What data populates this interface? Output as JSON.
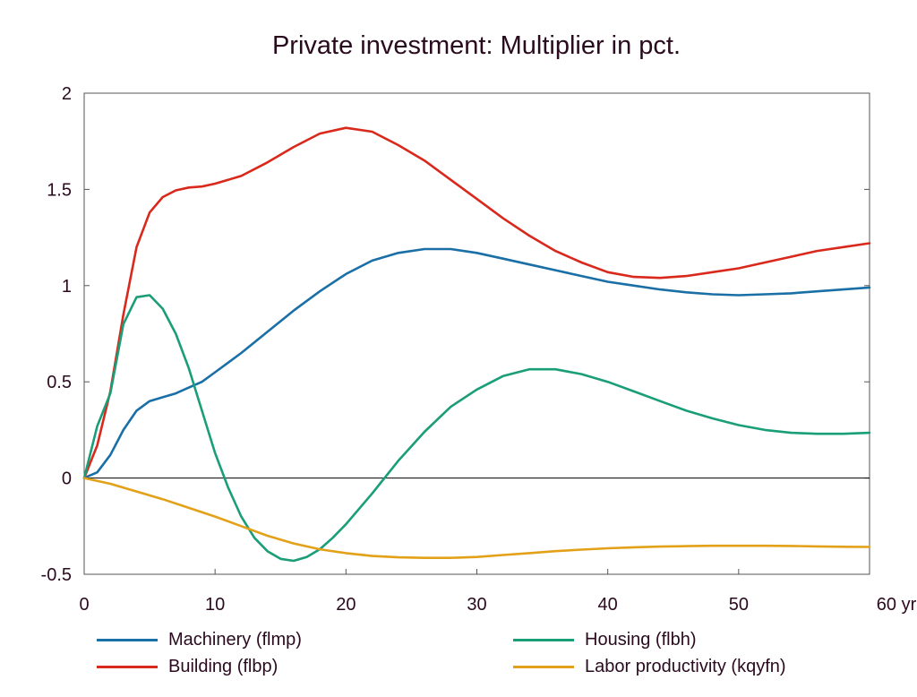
{
  "chart_data": {
    "type": "line",
    "title": "Private investment: Multiplier in pct.",
    "xlabel": "",
    "ylabel": "",
    "xlim": [
      0,
      60
    ],
    "ylim": [
      -0.5,
      2
    ],
    "x_ticks": [
      0,
      10,
      20,
      30,
      40,
      50,
      60
    ],
    "x_tick_labels": [
      "0",
      "10",
      "20",
      "30",
      "40",
      "50",
      "60 yr"
    ],
    "y_ticks": [
      -0.5,
      0,
      0.5,
      1,
      1.5,
      2
    ],
    "y_tick_labels": [
      "-0.5",
      "0",
      "0.5",
      "1",
      "1.5",
      "2"
    ],
    "grid": false,
    "legend_position": "bottom",
    "series": [
      {
        "name": "Machinery (flmp)",
        "color": "#1a6fa6",
        "points": [
          [
            0,
            0
          ],
          [
            1,
            0.03
          ],
          [
            2,
            0.12
          ],
          [
            3,
            0.25
          ],
          [
            4,
            0.35
          ],
          [
            5,
            0.4
          ],
          [
            6,
            0.42
          ],
          [
            7,
            0.44
          ],
          [
            8,
            0.47
          ],
          [
            9,
            0.5
          ],
          [
            10,
            0.55
          ],
          [
            12,
            0.65
          ],
          [
            14,
            0.76
          ],
          [
            16,
            0.87
          ],
          [
            18,
            0.97
          ],
          [
            20,
            1.06
          ],
          [
            22,
            1.13
          ],
          [
            24,
            1.17
          ],
          [
            26,
            1.19
          ],
          [
            28,
            1.19
          ],
          [
            30,
            1.17
          ],
          [
            32,
            1.14
          ],
          [
            34,
            1.11
          ],
          [
            36,
            1.08
          ],
          [
            38,
            1.05
          ],
          [
            40,
            1.02
          ],
          [
            42,
            1.0
          ],
          [
            44,
            0.98
          ],
          [
            46,
            0.965
          ],
          [
            48,
            0.955
          ],
          [
            50,
            0.95
          ],
          [
            52,
            0.955
          ],
          [
            54,
            0.96
          ],
          [
            56,
            0.97
          ],
          [
            58,
            0.98
          ],
          [
            60,
            0.99
          ]
        ]
      },
      {
        "name": "Building (flbp)",
        "color": "#d9291c",
        "points": [
          [
            0,
            0
          ],
          [
            1,
            0.17
          ],
          [
            2,
            0.45
          ],
          [
            3,
            0.85
          ],
          [
            4,
            1.2
          ],
          [
            5,
            1.38
          ],
          [
            6,
            1.46
          ],
          [
            7,
            1.495
          ],
          [
            8,
            1.51
          ],
          [
            9,
            1.515
          ],
          [
            10,
            1.53
          ],
          [
            12,
            1.57
          ],
          [
            14,
            1.64
          ],
          [
            16,
            1.72
          ],
          [
            18,
            1.79
          ],
          [
            20,
            1.82
          ],
          [
            22,
            1.8
          ],
          [
            24,
            1.73
          ],
          [
            26,
            1.65
          ],
          [
            28,
            1.55
          ],
          [
            30,
            1.45
          ],
          [
            32,
            1.35
          ],
          [
            34,
            1.26
          ],
          [
            36,
            1.18
          ],
          [
            38,
            1.12
          ],
          [
            40,
            1.07
          ],
          [
            42,
            1.045
          ],
          [
            44,
            1.04
          ],
          [
            46,
            1.05
          ],
          [
            48,
            1.07
          ],
          [
            50,
            1.09
          ],
          [
            52,
            1.12
          ],
          [
            54,
            1.15
          ],
          [
            56,
            1.18
          ],
          [
            58,
            1.2
          ],
          [
            60,
            1.22
          ]
        ]
      },
      {
        "name": "Housing (flbh)",
        "color": "#1a9e78",
        "points": [
          [
            0,
            0
          ],
          [
            1,
            0.27
          ],
          [
            2,
            0.44
          ],
          [
            3,
            0.8
          ],
          [
            4,
            0.94
          ],
          [
            5,
            0.95
          ],
          [
            6,
            0.88
          ],
          [
            7,
            0.75
          ],
          [
            8,
            0.57
          ],
          [
            9,
            0.35
          ],
          [
            10,
            0.13
          ],
          [
            11,
            -0.05
          ],
          [
            12,
            -0.2
          ],
          [
            13,
            -0.31
          ],
          [
            14,
            -0.38
          ],
          [
            15,
            -0.42
          ],
          [
            16,
            -0.43
          ],
          [
            17,
            -0.41
          ],
          [
            18,
            -0.37
          ],
          [
            19,
            -0.31
          ],
          [
            20,
            -0.24
          ],
          [
            22,
            -0.08
          ],
          [
            24,
            0.09
          ],
          [
            26,
            0.24
          ],
          [
            28,
            0.37
          ],
          [
            30,
            0.46
          ],
          [
            32,
            0.53
          ],
          [
            34,
            0.565
          ],
          [
            36,
            0.565
          ],
          [
            38,
            0.54
          ],
          [
            40,
            0.5
          ],
          [
            42,
            0.45
          ],
          [
            44,
            0.4
          ],
          [
            46,
            0.35
          ],
          [
            48,
            0.31
          ],
          [
            50,
            0.275
          ],
          [
            52,
            0.25
          ],
          [
            54,
            0.235
          ],
          [
            56,
            0.23
          ],
          [
            58,
            0.23
          ],
          [
            60,
            0.235
          ]
        ]
      },
      {
        "name": "Labor productivity (kqyfn)",
        "color": "#e3a119",
        "points": [
          [
            0,
            0
          ],
          [
            2,
            -0.03
          ],
          [
            4,
            -0.07
          ],
          [
            6,
            -0.11
          ],
          [
            8,
            -0.155
          ],
          [
            10,
            -0.2
          ],
          [
            12,
            -0.25
          ],
          [
            14,
            -0.3
          ],
          [
            16,
            -0.34
          ],
          [
            18,
            -0.37
          ],
          [
            20,
            -0.39
          ],
          [
            22,
            -0.405
          ],
          [
            24,
            -0.412
          ],
          [
            26,
            -0.415
          ],
          [
            28,
            -0.415
          ],
          [
            30,
            -0.41
          ],
          [
            32,
            -0.4
          ],
          [
            34,
            -0.39
          ],
          [
            36,
            -0.38
          ],
          [
            38,
            -0.372
          ],
          [
            40,
            -0.365
          ],
          [
            42,
            -0.36
          ],
          [
            44,
            -0.356
          ],
          [
            46,
            -0.354
          ],
          [
            48,
            -0.352
          ],
          [
            50,
            -0.352
          ],
          [
            52,
            -0.352
          ],
          [
            54,
            -0.353
          ],
          [
            56,
            -0.355
          ],
          [
            58,
            -0.357
          ],
          [
            60,
            -0.358
          ]
        ]
      }
    ]
  }
}
